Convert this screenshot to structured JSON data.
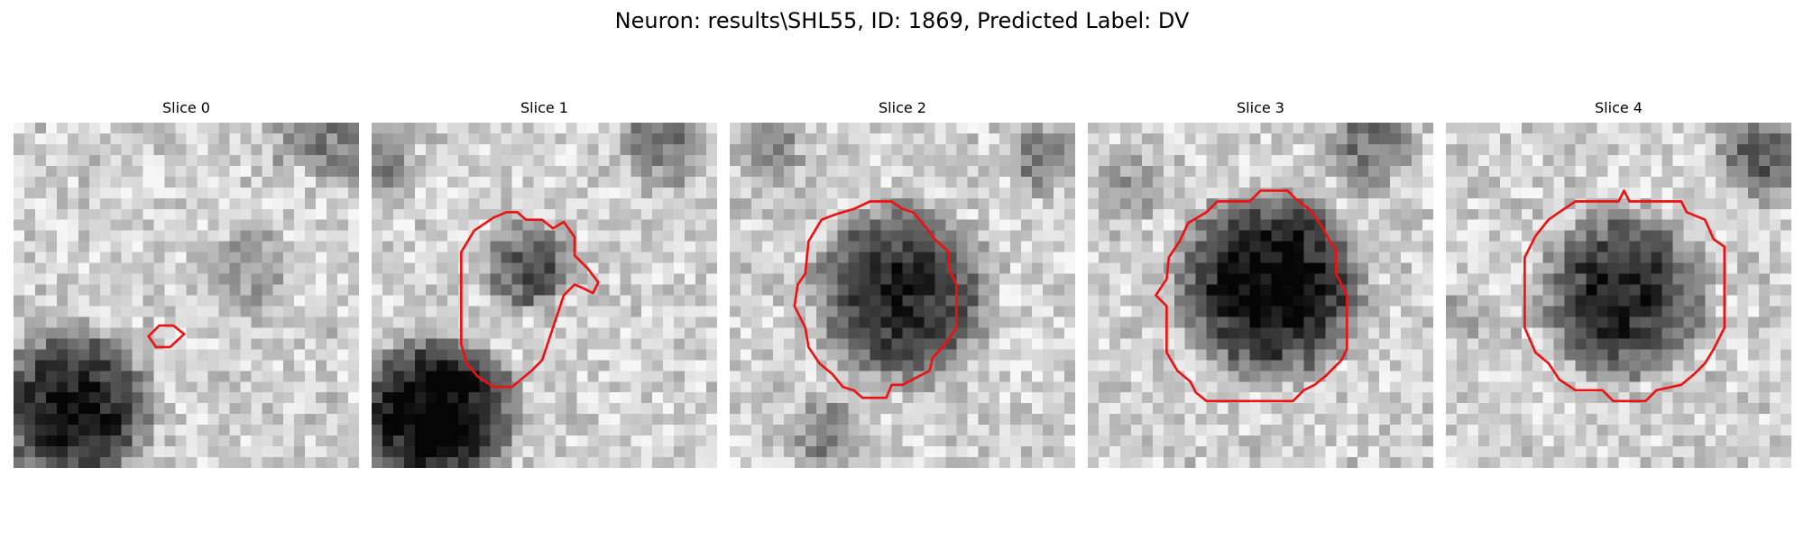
{
  "figure": {
    "title": "Neuron: results\\SHL55, ID: 1869, Predicted Label: DV"
  },
  "colors": {
    "contour": "#ee1111",
    "background": "#ffffff"
  },
  "panels": [
    {
      "title": "Slice 0"
    },
    {
      "title": "Slice 1"
    },
    {
      "title": "Slice 2"
    },
    {
      "title": "Slice 3"
    },
    {
      "title": "Slice 4"
    }
  ]
}
